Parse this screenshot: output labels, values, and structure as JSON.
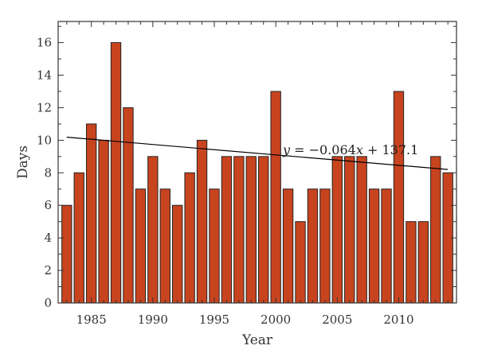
{
  "chart_data": {
    "type": "bar",
    "xlabel": "Year",
    "ylabel": "Days",
    "xlim": [
      1982.3,
      2014.7
    ],
    "ylim": [
      0,
      17.3
    ],
    "x_ticks": [
      1985,
      1990,
      1995,
      2000,
      2005,
      2010
    ],
    "y_ticks": [
      0,
      2,
      4,
      6,
      8,
      10,
      12,
      14,
      16
    ],
    "grid": false,
    "bar_color": "#c8441e",
    "categories": [
      1983,
      1984,
      1985,
      1986,
      1987,
      1988,
      1989,
      1990,
      1991,
      1992,
      1993,
      1994,
      1995,
      1996,
      1997,
      1998,
      1999,
      2000,
      2001,
      2002,
      2003,
      2004,
      2005,
      2006,
      2007,
      2008,
      2009,
      2010,
      2011,
      2012,
      2013,
      2014
    ],
    "values": [
      6,
      8,
      11,
      10,
      16,
      12,
      7,
      9,
      7,
      6,
      8,
      10,
      7,
      9,
      9,
      9,
      9,
      13,
      7,
      5,
      7,
      7,
      9,
      9,
      9,
      7,
      7,
      13,
      5,
      5,
      9,
      8
    ],
    "trendline": {
      "slope": -0.064,
      "intercept": 137.1,
      "x_start": 1983,
      "x_end": 2014,
      "equation": "y = −0.064x + 137.1"
    }
  }
}
